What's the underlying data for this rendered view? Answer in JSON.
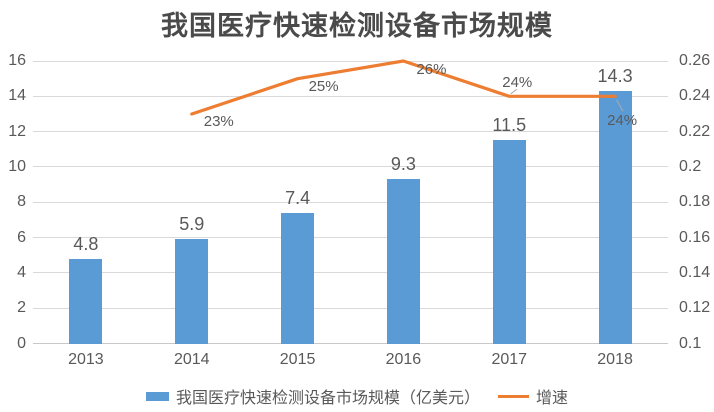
{
  "title": "我国医疗快速检测设备市场规模",
  "colors": {
    "bar": "#5B9BD5",
    "line": "#ED7D31",
    "text": "#595959",
    "title": "#4A4A4A",
    "grid": "#D9D9D9",
    "axis_line": "#C8C8C8",
    "leader": "#ABABAB"
  },
  "chart_data": {
    "type": "combo-bar-line",
    "title": "我国医疗快速检测设备市场规模",
    "categories": [
      "2013",
      "2014",
      "2015",
      "2016",
      "2017",
      "2018"
    ],
    "series": [
      {
        "name": "我国医疗快速检测设备市场规模（亿美元）",
        "type": "bar",
        "axis": "left",
        "values": [
          4.8,
          5.9,
          7.4,
          9.3,
          11.5,
          14.3
        ],
        "data_labels": [
          "4.8",
          "5.9",
          "7.4",
          "9.3",
          "11.5",
          "14.3"
        ]
      },
      {
        "name": "增速",
        "type": "line",
        "axis": "right",
        "values": [
          null,
          0.23,
          0.25,
          0.26,
          0.24,
          0.24
        ],
        "data_labels": [
          null,
          "23%",
          "25%",
          "26%",
          "24%",
          "24%"
        ]
      }
    ],
    "left_axis": {
      "min": 0,
      "max": 16,
      "step": 2,
      "tick_labels": [
        "0",
        "2",
        "4",
        "6",
        "8",
        "10",
        "12",
        "14",
        "16"
      ]
    },
    "right_axis": {
      "min": 0.1,
      "max": 0.26,
      "step": 0.02,
      "tick_labels": [
        "0.1",
        "0.12",
        "0.14",
        "0.16",
        "0.18",
        "0.2",
        "0.22",
        "0.24",
        "0.26"
      ]
    },
    "gridlines": true,
    "legend_position": "bottom"
  },
  "legend": {
    "items": [
      {
        "label": "我国医疗快速检测设备市场规模（亿美元）",
        "marker": "bar"
      },
      {
        "label": "增速",
        "marker": "line"
      }
    ]
  }
}
